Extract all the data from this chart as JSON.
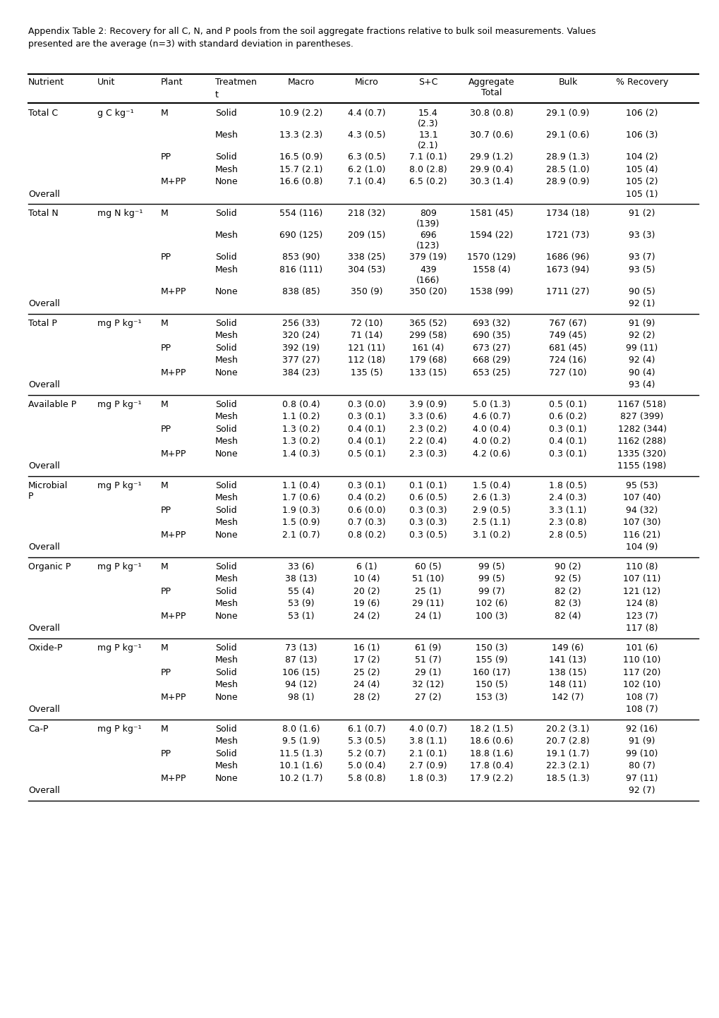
{
  "caption_line1": "Appendix Table 2: Recovery for all C, N, and P pools from the soil aggregate fractions relative to bulk soil measurements. Values",
  "caption_line2": "presented are the average (n=3) with standard deviation in parentheses.",
  "sections": [
    {
      "nutrient": "Total C",
      "unit": "g C kg⁻¹",
      "overall": "105 (1)",
      "rows": [
        {
          "plant": "M",
          "treatment": "Solid",
          "macro": "10.9 (2.2)",
          "micro": "4.4 (0.7)",
          "sc": "15.4\n(2.3)",
          "agg": "30.8 (0.8)",
          "bulk": "29.1 (0.9)",
          "rec": "106 (2)",
          "multiline": true
        },
        {
          "plant": "",
          "treatment": "Mesh",
          "macro": "13.3 (2.3)",
          "micro": "4.3 (0.5)",
          "sc": "13.1\n(2.1)",
          "agg": "30.7 (0.6)",
          "bulk": "29.1 (0.6)",
          "rec": "106 (3)",
          "multiline": true
        },
        {
          "plant": "PP",
          "treatment": "Solid",
          "macro": "16.5 (0.9)",
          "micro": "6.3 (0.5)",
          "sc": "7.1 (0.1)",
          "agg": "29.9 (1.2)",
          "bulk": "28.9 (1.3)",
          "rec": "104 (2)",
          "multiline": false
        },
        {
          "plant": "",
          "treatment": "Mesh",
          "macro": "15.7 (2.1)",
          "micro": "6.2 (1.0)",
          "sc": "8.0 (2.8)",
          "agg": "29.9 (0.4)",
          "bulk": "28.5 (1.0)",
          "rec": "105 (4)",
          "multiline": false
        },
        {
          "plant": "M+PP",
          "treatment": "None",
          "macro": "16.6 (0.8)",
          "micro": "7.1 (0.4)",
          "sc": "6.5 (0.2)",
          "agg": "30.3 (1.4)",
          "bulk": "28.9 (0.9)",
          "rec": "105 (2)",
          "multiline": false
        }
      ]
    },
    {
      "nutrient": "Total N",
      "unit": "mg N kg⁻¹",
      "overall": "92 (1)",
      "rows": [
        {
          "plant": "M",
          "treatment": "Solid",
          "macro": "554 (116)",
          "micro": "218 (32)",
          "sc": "809\n(139)",
          "agg": "1581 (45)",
          "bulk": "1734 (18)",
          "rec": "91 (2)",
          "multiline": true
        },
        {
          "plant": "",
          "treatment": "Mesh",
          "macro": "690 (125)",
          "micro": "209 (15)",
          "sc": "696\n(123)",
          "agg": "1594 (22)",
          "bulk": "1721 (73)",
          "rec": "93 (3)",
          "multiline": true
        },
        {
          "plant": "PP",
          "treatment": "Solid",
          "macro": "853 (90)",
          "micro": "338 (25)",
          "sc": "379 (19)",
          "agg": "1570 (129)",
          "bulk": "1686 (96)",
          "rec": "93 (7)",
          "multiline": false
        },
        {
          "plant": "",
          "treatment": "Mesh",
          "macro": "816 (111)",
          "micro": "304 (53)",
          "sc": "439\n(166)",
          "agg": "1558 (4)",
          "bulk": "1673 (94)",
          "rec": "93 (5)",
          "multiline": true
        },
        {
          "plant": "M+PP",
          "treatment": "None",
          "macro": "838 (85)",
          "micro": "350 (9)",
          "sc": "350 (20)",
          "agg": "1538 (99)",
          "bulk": "1711 (27)",
          "rec": "90 (5)",
          "multiline": false
        }
      ]
    },
    {
      "nutrient": "Total P",
      "unit": "mg P kg⁻¹",
      "overall": "93 (4)",
      "rows": [
        {
          "plant": "M",
          "treatment": "Solid",
          "macro": "256 (33)",
          "micro": "72 (10)",
          "sc": "365 (52)",
          "agg": "693 (32)",
          "bulk": "767 (67)",
          "rec": "91 (9)",
          "multiline": false
        },
        {
          "plant": "",
          "treatment": "Mesh",
          "macro": "320 (24)",
          "micro": "71 (14)",
          "sc": "299 (58)",
          "agg": "690 (35)",
          "bulk": "749 (45)",
          "rec": "92 (2)",
          "multiline": false
        },
        {
          "plant": "PP",
          "treatment": "Solid",
          "macro": "392 (19)",
          "micro": "121 (11)",
          "sc": "161 (4)",
          "agg": "673 (27)",
          "bulk": "681 (45)",
          "rec": "99 (11)",
          "multiline": false
        },
        {
          "plant": "",
          "treatment": "Mesh",
          "macro": "377 (27)",
          "micro": "112 (18)",
          "sc": "179 (68)",
          "agg": "668 (29)",
          "bulk": "724 (16)",
          "rec": "92 (4)",
          "multiline": false
        },
        {
          "plant": "M+PP",
          "treatment": "None",
          "macro": "384 (23)",
          "micro": "135 (5)",
          "sc": "133 (15)",
          "agg": "653 (25)",
          "bulk": "727 (10)",
          "rec": "90 (4)",
          "multiline": false
        }
      ]
    },
    {
      "nutrient": "Available P",
      "unit": "mg P kg⁻¹",
      "overall": "1155 (198)",
      "rows": [
        {
          "plant": "M",
          "treatment": "Solid",
          "macro": "0.8 (0.4)",
          "micro": "0.3 (0.0)",
          "sc": "3.9 (0.9)",
          "agg": "5.0 (1.3)",
          "bulk": "0.5 (0.1)",
          "rec": "1167 (518)",
          "multiline": false
        },
        {
          "plant": "",
          "treatment": "Mesh",
          "macro": "1.1 (0.2)",
          "micro": "0.3 (0.1)",
          "sc": "3.3 (0.6)",
          "agg": "4.6 (0.7)",
          "bulk": "0.6 (0.2)",
          "rec": "827 (399)",
          "multiline": false
        },
        {
          "plant": "PP",
          "treatment": "Solid",
          "macro": "1.3 (0.2)",
          "micro": "0.4 (0.1)",
          "sc": "2.3 (0.2)",
          "agg": "4.0 (0.4)",
          "bulk": "0.3 (0.1)",
          "rec": "1282 (344)",
          "multiline": false
        },
        {
          "plant": "",
          "treatment": "Mesh",
          "macro": "1.3 (0.2)",
          "micro": "0.4 (0.1)",
          "sc": "2.2 (0.4)",
          "agg": "4.0 (0.2)",
          "bulk": "0.4 (0.1)",
          "rec": "1162 (288)",
          "multiline": false
        },
        {
          "plant": "M+PP",
          "treatment": "None",
          "macro": "1.4 (0.3)",
          "micro": "0.5 (0.1)",
          "sc": "2.3 (0.3)",
          "agg": "4.2 (0.6)",
          "bulk": "0.3 (0.1)",
          "rec": "1335 (320)",
          "multiline": false
        }
      ]
    },
    {
      "nutrient": "Microbial\nP",
      "unit": "mg P kg⁻¹",
      "overall": "104 (9)",
      "rows": [
        {
          "plant": "M",
          "treatment": "Solid",
          "macro": "1.1 (0.4)",
          "micro": "0.3 (0.1)",
          "sc": "0.1 (0.1)",
          "agg": "1.5 (0.4)",
          "bulk": "1.8 (0.5)",
          "rec": "95 (53)",
          "multiline": false
        },
        {
          "plant": "",
          "treatment": "Mesh",
          "macro": "1.7 (0.6)",
          "micro": "0.4 (0.2)",
          "sc": "0.6 (0.5)",
          "agg": "2.6 (1.3)",
          "bulk": "2.4 (0.3)",
          "rec": "107 (40)",
          "multiline": false
        },
        {
          "plant": "PP",
          "treatment": "Solid",
          "macro": "1.9 (0.3)",
          "micro": "0.6 (0.0)",
          "sc": "0.3 (0.3)",
          "agg": "2.9 (0.5)",
          "bulk": "3.3 (1.1)",
          "rec": "94 (32)",
          "multiline": false
        },
        {
          "plant": "",
          "treatment": "Mesh",
          "macro": "1.5 (0.9)",
          "micro": "0.7 (0.3)",
          "sc": "0.3 (0.3)",
          "agg": "2.5 (1.1)",
          "bulk": "2.3 (0.8)",
          "rec": "107 (30)",
          "multiline": false
        },
        {
          "plant": "M+PP",
          "treatment": "None",
          "macro": "2.1 (0.7)",
          "micro": "0.8 (0.2)",
          "sc": "0.3 (0.5)",
          "agg": "3.1 (0.2)",
          "bulk": "2.8 (0.5)",
          "rec": "116 (21)",
          "multiline": false
        }
      ]
    },
    {
      "nutrient": "Organic P",
      "unit": "mg P kg⁻¹",
      "overall": "117 (8)",
      "rows": [
        {
          "plant": "M",
          "treatment": "Solid",
          "macro": "33 (6)",
          "micro": "6 (1)",
          "sc": "60 (5)",
          "agg": "99 (5)",
          "bulk": "90 (2)",
          "rec": "110 (8)",
          "multiline": false
        },
        {
          "plant": "",
          "treatment": "Mesh",
          "macro": "38 (13)",
          "micro": "10 (4)",
          "sc": "51 (10)",
          "agg": "99 (5)",
          "bulk": "92 (5)",
          "rec": "107 (11)",
          "multiline": false
        },
        {
          "plant": "PP",
          "treatment": "Solid",
          "macro": "55 (4)",
          "micro": "20 (2)",
          "sc": "25 (1)",
          "agg": "99 (7)",
          "bulk": "82 (2)",
          "rec": "121 (12)",
          "multiline": false
        },
        {
          "plant": "",
          "treatment": "Mesh",
          "macro": "53 (9)",
          "micro": "19 (6)",
          "sc": "29 (11)",
          "agg": "102 (6)",
          "bulk": "82 (3)",
          "rec": "124 (8)",
          "multiline": false
        },
        {
          "plant": "M+PP",
          "treatment": "None",
          "macro": "53 (1)",
          "micro": "24 (2)",
          "sc": "24 (1)",
          "agg": "100 (3)",
          "bulk": "82 (4)",
          "rec": "123 (7)",
          "multiline": false
        }
      ]
    },
    {
      "nutrient": "Oxide-P",
      "unit": "mg P kg⁻¹",
      "overall": "108 (7)",
      "rows": [
        {
          "plant": "M",
          "treatment": "Solid",
          "macro": "73 (13)",
          "micro": "16 (1)",
          "sc": "61 (9)",
          "agg": "150 (3)",
          "bulk": "149 (6)",
          "rec": "101 (6)",
          "multiline": false
        },
        {
          "plant": "",
          "treatment": "Mesh",
          "macro": "87 (13)",
          "micro": "17 (2)",
          "sc": "51 (7)",
          "agg": "155 (9)",
          "bulk": "141 (13)",
          "rec": "110 (10)",
          "multiline": false
        },
        {
          "plant": "PP",
          "treatment": "Solid",
          "macro": "106 (15)",
          "micro": "25 (2)",
          "sc": "29 (1)",
          "agg": "160 (17)",
          "bulk": "138 (15)",
          "rec": "117 (20)",
          "multiline": false
        },
        {
          "plant": "",
          "treatment": "Mesh",
          "macro": "94 (12)",
          "micro": "24 (4)",
          "sc": "32 (12)",
          "agg": "150 (5)",
          "bulk": "148 (11)",
          "rec": "102 (10)",
          "multiline": false
        },
        {
          "plant": "M+PP",
          "treatment": "None",
          "macro": "98 (1)",
          "micro": "28 (2)",
          "sc": "27 (2)",
          "agg": "153 (3)",
          "bulk": "142 (7)",
          "rec": "108 (7)",
          "multiline": false
        }
      ]
    },
    {
      "nutrient": "Ca-P",
      "unit": "mg P kg⁻¹",
      "overall": "92 (7)",
      "rows": [
        {
          "plant": "M",
          "treatment": "Solid",
          "macro": "8.0 (1.6)",
          "micro": "6.1 (0.7)",
          "sc": "4.0 (0.7)",
          "agg": "18.2 (1.5)",
          "bulk": "20.2 (3.1)",
          "rec": "92 (16)",
          "multiline": false
        },
        {
          "plant": "",
          "treatment": "Mesh",
          "macro": "9.5 (1.9)",
          "micro": "5.3 (0.5)",
          "sc": "3.8 (1.1)",
          "agg": "18.6 (0.6)",
          "bulk": "20.7 (2.8)",
          "rec": "91 (9)",
          "multiline": false
        },
        {
          "plant": "PP",
          "treatment": "Solid",
          "macro": "11.5 (1.3)",
          "micro": "5.2 (0.7)",
          "sc": "2.1 (0.1)",
          "agg": "18.8 (1.6)",
          "bulk": "19.1 (1.7)",
          "rec": "99 (10)",
          "multiline": false
        },
        {
          "plant": "",
          "treatment": "Mesh",
          "macro": "10.1 (1.6)",
          "micro": "5.0 (0.4)",
          "sc": "2.7 (0.9)",
          "agg": "17.8 (0.4)",
          "bulk": "22.3 (2.1)",
          "rec": "80 (7)",
          "multiline": false
        },
        {
          "plant": "M+PP",
          "treatment": "None",
          "macro": "10.2 (1.7)",
          "micro": "5.8 (0.8)",
          "sc": "1.8 (0.3)",
          "agg": "17.9 (2.2)",
          "bulk": "18.5 (1.3)",
          "rec": "97 (11)",
          "multiline": false
        }
      ]
    }
  ],
  "fontsize": 9.0,
  "fig_width": 10.2,
  "fig_height": 14.43,
  "dpi": 100
}
